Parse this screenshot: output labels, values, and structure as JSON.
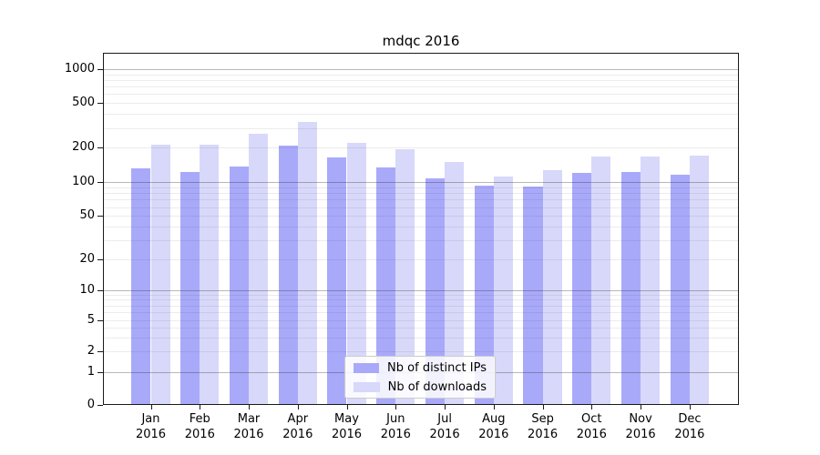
{
  "title": "mdqc 2016",
  "legend": {
    "items": [
      {
        "label": "Nb of distinct IPs",
        "color": "#a9a9fa"
      },
      {
        "label": "Nb of downloads",
        "color": "#d8d8fa"
      }
    ]
  },
  "axes": {
    "y_ticks": [
      0,
      1,
      2,
      5,
      10,
      20,
      50,
      100,
      200,
      500,
      1000
    ],
    "x_months": [
      "Jan",
      "Feb",
      "Mar",
      "Apr",
      "May",
      "Jun",
      "Jul",
      "Aug",
      "Sep",
      "Oct",
      "Nov",
      "Dec"
    ],
    "x_year": "2016"
  },
  "chart_data": {
    "type": "bar",
    "title": "mdqc 2016",
    "categories": [
      "Jan 2016",
      "Feb 2016",
      "Mar 2016",
      "Apr 2016",
      "May 2016",
      "Jun 2016",
      "Jul 2016",
      "Aug 2016",
      "Sep 2016",
      "Oct 2016",
      "Nov 2016",
      "Dec 2016"
    ],
    "series": [
      {
        "name": "Nb of distinct IPs",
        "color": "#a9a9fa",
        "values": [
          133,
          124,
          137,
          210,
          166,
          135,
          109,
          94,
          91,
          120,
          124,
          117
        ]
      },
      {
        "name": "Nb of downloads",
        "color": "#d8d8fa",
        "values": [
          215,
          215,
          268,
          340,
          220,
          196,
          150,
          113,
          128,
          169,
          169,
          172
        ]
      }
    ],
    "xlabel": "",
    "ylabel": "",
    "yscale": "symlog",
    "y_tick_values": [
      0,
      1,
      2,
      5,
      10,
      20,
      50,
      100,
      200,
      500,
      1000
    ],
    "ylim": [
      0,
      1400
    ],
    "grid": "major dark, minor light, drawn over bars",
    "legend_position": "lower center"
  }
}
